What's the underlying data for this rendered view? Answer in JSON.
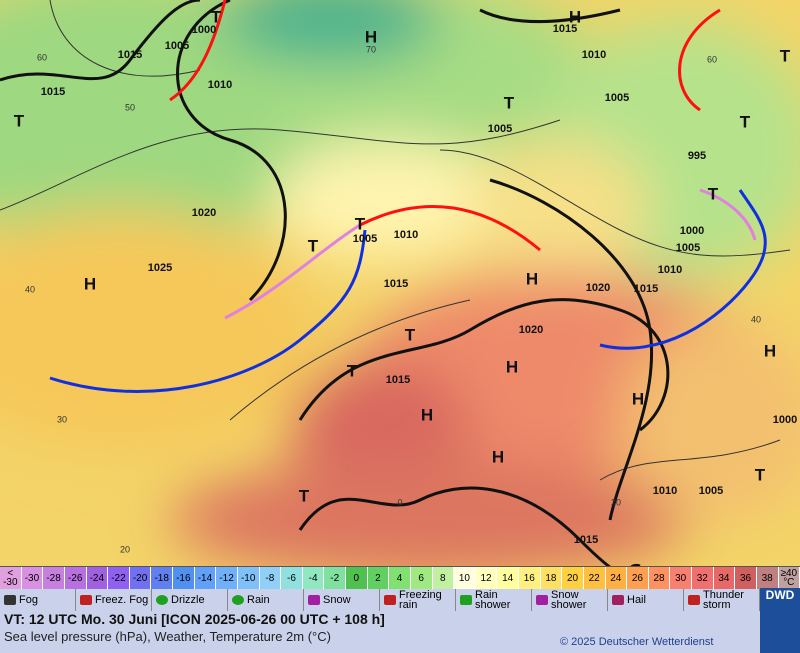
{
  "map": {
    "pressure_labels": [
      "1015",
      "1005",
      "1000",
      "1010",
      "1015",
      "1020",
      "1025",
      "1005",
      "1010",
      "1015",
      "1015",
      "1020",
      "1015",
      "1020",
      "1005",
      "1005",
      "995",
      "1000",
      "1005",
      "1010",
      "1015",
      "1010",
      "1010",
      "1005",
      "1015",
      "1000"
    ],
    "highs": [
      "H",
      "H",
      "H",
      "H",
      "H",
      "H",
      "H",
      "H",
      "H"
    ],
    "lows": [
      "T",
      "T",
      "T",
      "T",
      "T",
      "T",
      "T",
      "T",
      "T",
      "T",
      "T",
      "T"
    ],
    "grid_labels": [
      "60",
      "50",
      "40",
      "30",
      "20",
      "0",
      "20",
      "40",
      "60",
      "70"
    ]
  },
  "color_scale": [
    {
      "top": "<",
      "bottom": "-30",
      "color": "#e0a0e0"
    },
    {
      "bottom": "-30",
      "color": "#d890e0"
    },
    {
      "bottom": "-28",
      "color": "#c880e0"
    },
    {
      "bottom": "-26",
      "color": "#b870e0"
    },
    {
      "bottom": "-24",
      "color": "#a060e0"
    },
    {
      "bottom": "-22",
      "color": "#9060f0"
    },
    {
      "bottom": "-20",
      "color": "#7070f0"
    },
    {
      "bottom": "-18",
      "color": "#6080f0"
    },
    {
      "bottom": "-16",
      "color": "#5090f0"
    },
    {
      "bottom": "-14",
      "color": "#60a0f8"
    },
    {
      "bottom": "-12",
      "color": "#70b0f8"
    },
    {
      "bottom": "-10",
      "color": "#80c0f8"
    },
    {
      "bottom": "-8",
      "color": "#90d0f8"
    },
    {
      "bottom": "-6",
      "color": "#90e0e0"
    },
    {
      "bottom": "-4",
      "color": "#90e8c0"
    },
    {
      "bottom": "-2",
      "color": "#80e0a0"
    },
    {
      "bottom": "0",
      "color": "#50c050"
    },
    {
      "bottom": "2",
      "color": "#60d060"
    },
    {
      "bottom": "4",
      "color": "#80e070"
    },
    {
      "bottom": "6",
      "color": "#a0e880"
    },
    {
      "bottom": "8",
      "color": "#c0f0a0"
    },
    {
      "bottom": "10",
      "color": "#ffffe0"
    },
    {
      "bottom": "12",
      "color": "#ffffc0"
    },
    {
      "bottom": "14",
      "color": "#ffffa0"
    },
    {
      "bottom": "16",
      "color": "#fff080"
    },
    {
      "bottom": "18",
      "color": "#ffe060"
    },
    {
      "bottom": "20",
      "color": "#ffd040"
    },
    {
      "bottom": "22",
      "color": "#ffc040"
    },
    {
      "bottom": "24",
      "color": "#ffb040"
    },
    {
      "bottom": "26",
      "color": "#ffa050"
    },
    {
      "bottom": "28",
      "color": "#ff9060"
    },
    {
      "bottom": "30",
      "color": "#f88070"
    },
    {
      "bottom": "32",
      "color": "#f07070"
    },
    {
      "bottom": "34",
      "color": "#e86868"
    },
    {
      "bottom": "36",
      "color": "#d06060"
    },
    {
      "bottom": "38",
      "color": "#c08080"
    },
    {
      "top": "≥40",
      "bottom": "°C",
      "color": "#c0a0a0"
    }
  ],
  "weather_legend": [
    "Fog",
    "Freez. Fog",
    "Drizzle",
    "Rain",
    "Snow",
    "Freezing rain",
    "Rain shower",
    "Snow shower",
    "Hail",
    "Thunder storm"
  ],
  "footer": {
    "valid_time": "VT: 12 UTC Mo.  30 Juni [ICON 2025-06-26  00 UTC + 108 h]",
    "subtitle": "Sea level pressure (hPa), Weather, Temperature 2m (°C)",
    "copyright": "© 2025 Deutscher Wetterdienst",
    "logo": "DWD"
  }
}
